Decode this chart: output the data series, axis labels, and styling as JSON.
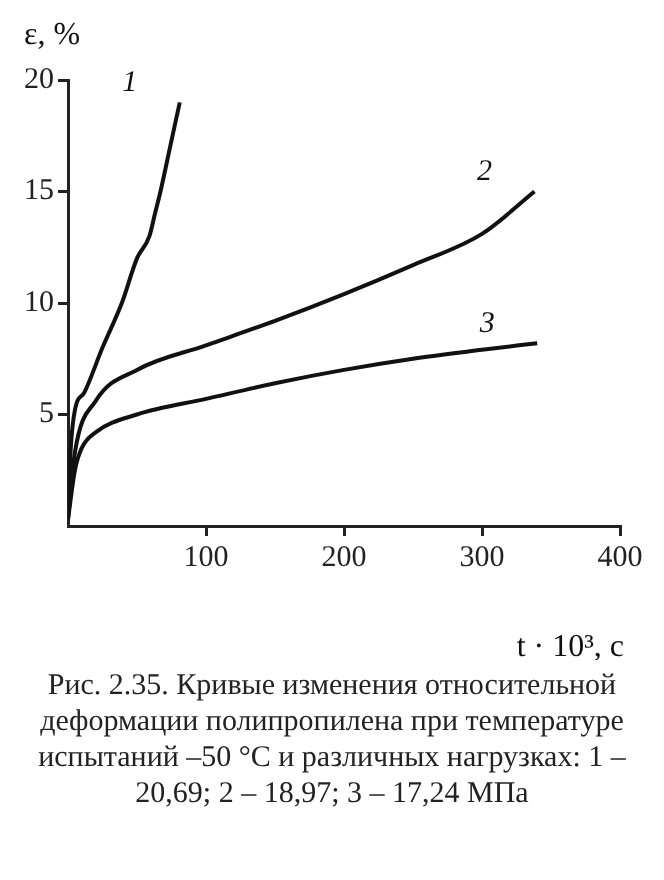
{
  "chart_data": {
    "type": "line",
    "xlabel": "t · 10³, с",
    "ylabel": "ε, %",
    "xlim": [
      0,
      400
    ],
    "xticks": [
      100,
      200,
      300,
      400
    ],
    "ylim": [
      0,
      20
    ],
    "yticks": [
      5,
      10,
      15,
      20
    ],
    "grid": false,
    "legend": false,
    "marker": "none",
    "line_style": "solid",
    "series": [
      {
        "name": "1",
        "color": "#111111",
        "x": [
          0,
          2,
          5,
          12,
          25,
          39,
          50,
          59,
          63,
          67,
          74,
          81
        ],
        "values": [
          0.5,
          3.5,
          5.2,
          6,
          8,
          10,
          12,
          13,
          14,
          15,
          17,
          19
        ]
      },
      {
        "name": "2",
        "color": "#111111",
        "x": [
          0,
          5,
          20,
          50,
          100,
          150,
          200,
          250,
          300,
          338
        ],
        "values": [
          0.3,
          3.3,
          5.6,
          7,
          8.1,
          9.2,
          10.4,
          11.7,
          13.1,
          15
        ]
      },
      {
        "name": "3",
        "color": "#111111",
        "x": [
          0,
          5,
          10,
          20,
          50,
          100,
          150,
          200,
          250,
          300,
          340
        ],
        "values": [
          0.3,
          2.5,
          3.5,
          4.2,
          5,
          5.7,
          6.4,
          7,
          7.5,
          7.9,
          8.2
        ]
      }
    ],
    "annotations": [
      "Рис. 2.35. Кривые изменения относительной деформации полипропилена при температуре испытаний –50 °C и различных нагрузках: 1 – 20,69; 2 – 18,97; 3 – 17,24 МПа"
    ]
  }
}
